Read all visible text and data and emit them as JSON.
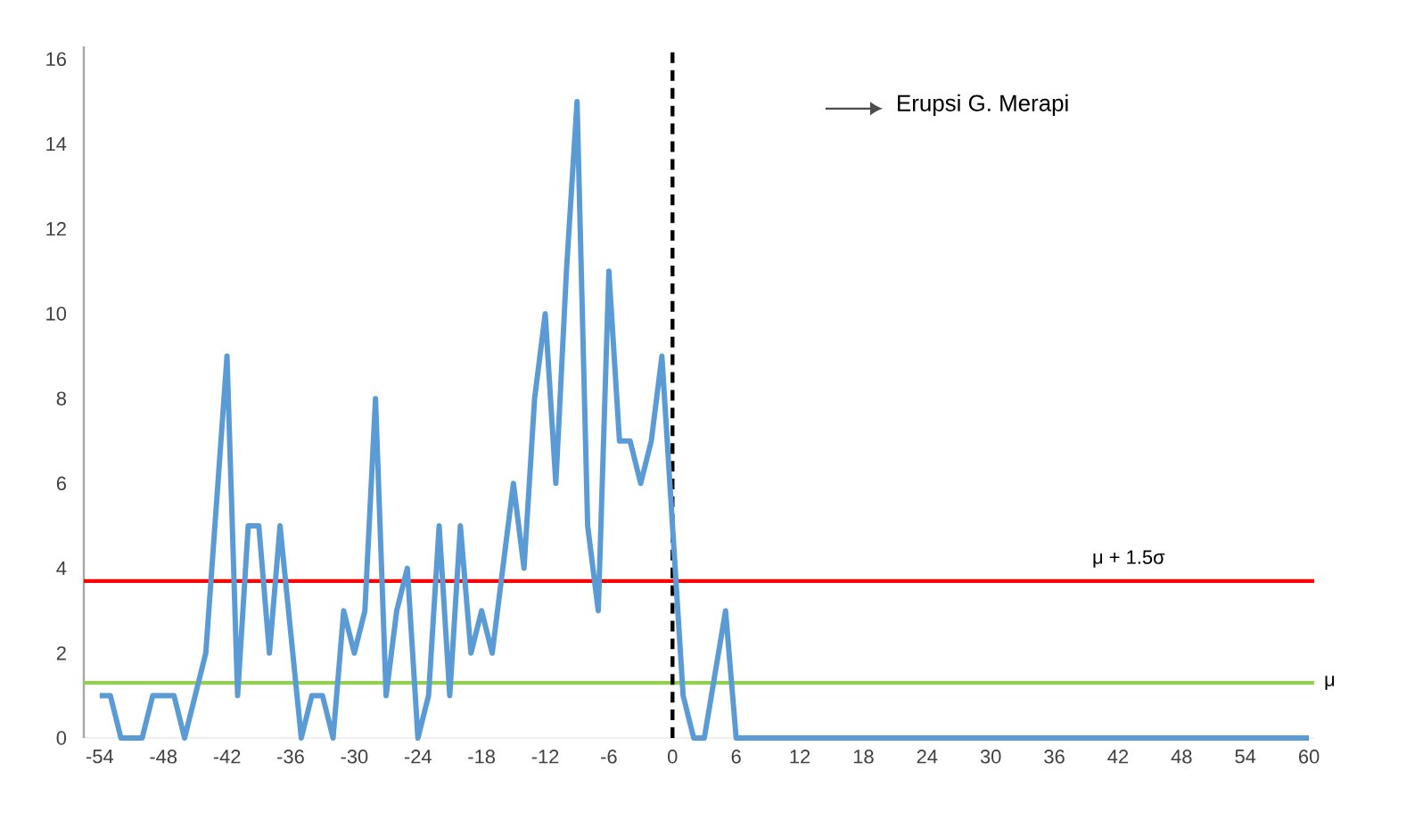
{
  "chart_data": {
    "type": "line",
    "x": [
      -54,
      -53,
      -52,
      -51,
      -50,
      -49,
      -48,
      -47,
      -46,
      -45,
      -44,
      -43,
      -42,
      -41,
      -40,
      -39,
      -38,
      -37,
      -36,
      -35,
      -34,
      -33,
      -32,
      -31,
      -30,
      -29,
      -28,
      -27,
      -26,
      -25,
      -24,
      -23,
      -22,
      -21,
      -20,
      -19,
      -18,
      -17,
      -16,
      -15,
      -14,
      -13,
      -12,
      -11,
      -10,
      -9,
      -8,
      -7,
      -6,
      -5,
      -4,
      -3,
      -2,
      -1,
      0,
      1,
      2,
      3,
      4,
      5,
      6,
      7,
      8,
      9,
      10,
      11,
      12,
      13,
      14,
      15,
      16,
      17,
      18,
      19,
      20,
      21,
      22,
      23,
      24,
      25,
      26,
      27,
      28,
      29,
      30,
      31,
      32,
      33,
      34,
      35,
      36,
      37,
      38,
      39,
      40,
      41,
      42,
      43,
      44,
      45,
      46,
      47,
      48,
      49,
      50,
      51,
      52,
      53,
      54,
      55,
      56,
      57,
      58,
      59,
      60
    ],
    "series": [
      {
        "color": "#5b9bd5",
        "values": [
          1,
          1,
          0,
          0,
          0,
          1,
          1,
          1,
          0,
          1,
          2,
          5.5,
          9,
          1,
          5,
          5,
          2,
          5,
          2.5,
          0,
          1,
          1,
          0,
          3,
          2,
          3,
          8,
          1,
          3,
          4,
          0,
          1,
          5,
          1,
          5,
          2,
          3,
          2,
          4,
          6,
          4,
          8,
          10,
          6,
          11,
          15,
          5,
          3,
          11,
          7,
          7,
          6,
          7,
          9,
          5,
          1,
          0,
          0,
          1.5,
          3,
          0,
          0,
          0,
          0,
          0,
          0,
          0,
          0,
          0,
          0,
          0,
          0,
          0,
          0,
          0,
          0,
          0,
          0,
          0,
          0,
          0,
          0,
          0,
          0,
          0,
          0,
          0,
          0,
          0,
          0,
          0,
          0,
          0,
          0,
          0,
          0,
          0,
          0,
          0,
          0,
          0,
          0,
          0,
          0,
          0,
          0,
          0,
          0,
          0,
          0,
          0,
          0,
          0,
          0,
          0
        ]
      }
    ],
    "xlim": [
      -55.5,
      60.5
    ],
    "ylim": [
      0,
      16.3
    ],
    "xticks": [
      -54,
      -48,
      -42,
      -36,
      -30,
      -24,
      -18,
      -12,
      -6,
      0,
      6,
      12,
      18,
      24,
      30,
      36,
      42,
      48,
      54,
      60
    ],
    "yticks": [
      0,
      2,
      4,
      6,
      8,
      10,
      12,
      14,
      16
    ],
    "grid": false,
    "marker": "none",
    "line_style": "solid",
    "ref_lines": [
      {
        "axis": "y",
        "value": 3.7,
        "label": "μ + 1.5σ",
        "color": "#ff0000",
        "line_style": "solid"
      },
      {
        "axis": "y",
        "value": 1.3,
        "label": "μ",
        "color": "#92d050",
        "line_style": "solid"
      },
      {
        "axis": "x",
        "value": 0,
        "color": "#000000",
        "line_style": "dashed"
      }
    ],
    "annotations": [
      "Erupsi G. Merapi"
    ]
  }
}
